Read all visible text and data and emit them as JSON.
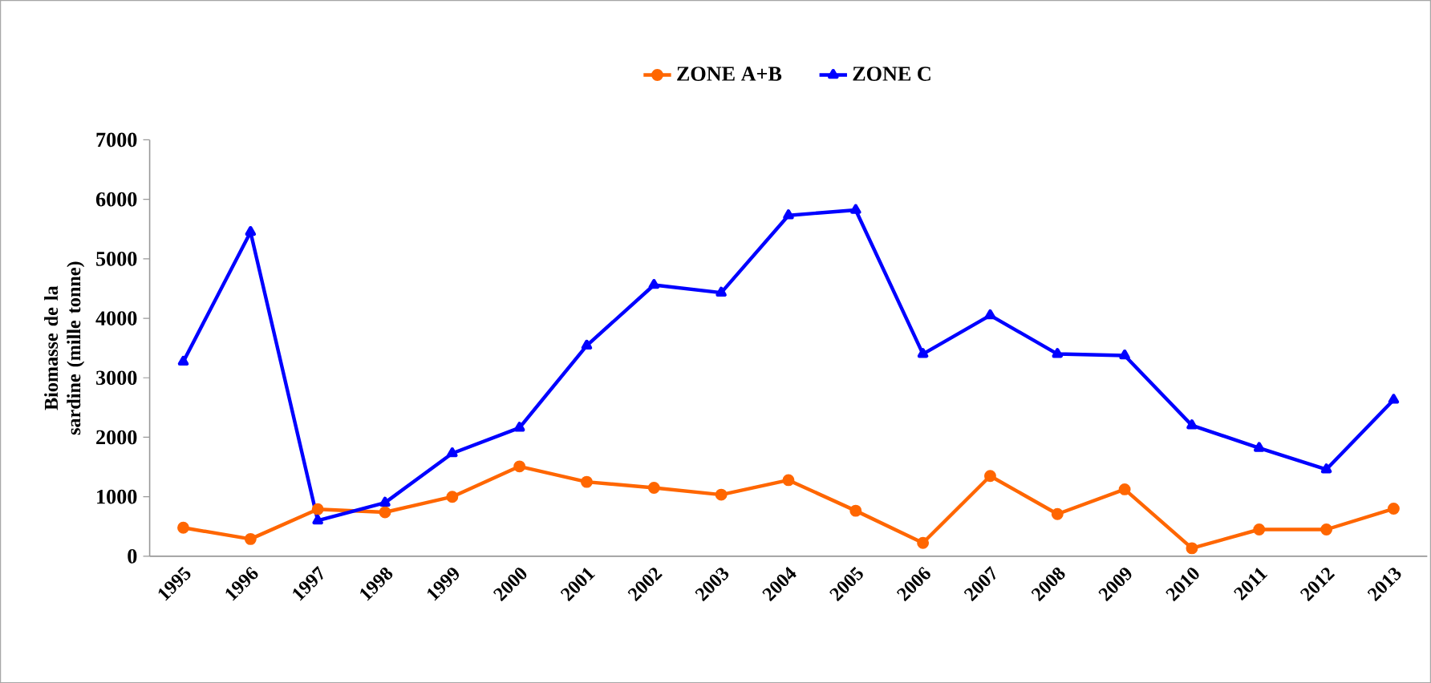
{
  "chart_data": {
    "type": "line",
    "ylabel": "Biomasse de la sardine (mille tonne)",
    "categories": [
      "1995",
      "1996",
      "1997",
      "1998",
      "1999",
      "2000",
      "2001",
      "2002",
      "2003",
      "2004",
      "2005",
      "2006",
      "2007",
      "2008",
      "2009",
      "2010",
      "2011",
      "2012",
      "2013"
    ],
    "series": [
      {
        "name": "ZONE A+B",
        "color": "#ff6600",
        "marker": "circle",
        "values": [
          480,
          290,
          790,
          740,
          1000,
          1510,
          1250,
          1150,
          1035,
          1280,
          765,
          225,
          1350,
          710,
          1125,
          135,
          450,
          450,
          800
        ]
      },
      {
        "name": "ZONE C",
        "color": "#0000ff",
        "marker": "triangle",
        "values": [
          3270,
          5450,
          600,
          900,
          1730,
          2160,
          3540,
          4560,
          4430,
          5730,
          5820,
          3400,
          4050,
          3400,
          3375,
          2200,
          1820,
          1460,
          2630
        ]
      }
    ],
    "ylim": [
      0,
      7000
    ],
    "yticks": [
      0,
      1000,
      2000,
      3000,
      4000,
      5000,
      6000,
      7000
    ],
    "legend": "top",
    "grid": false,
    "line_style": "solid"
  }
}
